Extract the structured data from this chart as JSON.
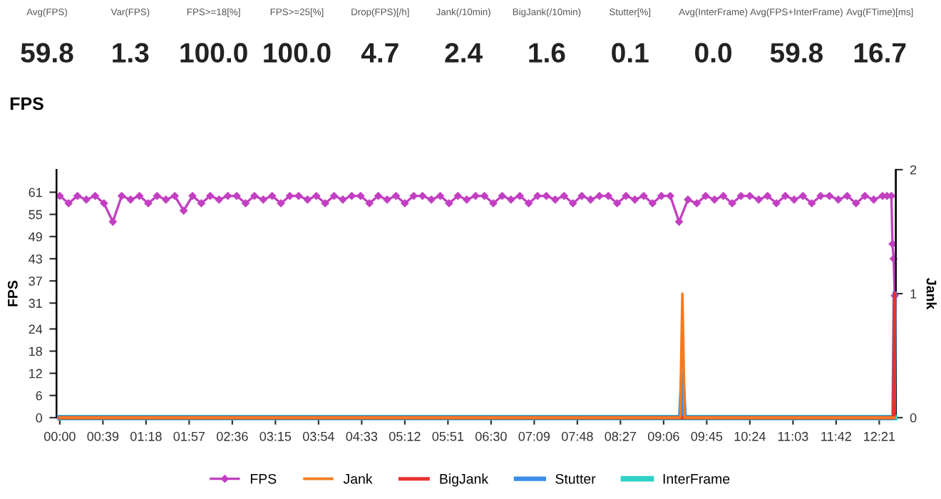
{
  "chart_data": [
    {
      "type": "other",
      "categories": [
        "Avg(FPS)",
        "Var(FPS)",
        "FPS>=18[%]",
        "FPS>=25[%]",
        "Drop(FPS)[/h]",
        "Jank(/10min)",
        "BigJank(/10min)",
        "Stutter[%]",
        "Avg(InterFrame)",
        "Avg(FPS+InterFrame)",
        "Avg(FTime)[ms]"
      ],
      "value_labels": [
        "59.8",
        "1.3",
        "100.0",
        "100.0",
        "4.7",
        "2.4",
        "1.6",
        "0.1",
        "0.0",
        "59.8",
        "16.7"
      ]
    },
    {
      "type": "line",
      "title": "FPS",
      "ylabel": "FPS",
      "y2label": "Jank",
      "xlim": [
        -3,
        756
      ],
      "xticks": [
        {
          "value": 0,
          "label": "00:00"
        },
        {
          "value": 39,
          "label": "00:39"
        },
        {
          "value": 78,
          "label": "01:18"
        },
        {
          "value": 117,
          "label": "01:57"
        },
        {
          "value": 156,
          "label": "02:36"
        },
        {
          "value": 195,
          "label": "03:15"
        },
        {
          "value": 234,
          "label": "03:54"
        },
        {
          "value": 273,
          "label": "04:33"
        },
        {
          "value": 312,
          "label": "05:12"
        },
        {
          "value": 351,
          "label": "05:51"
        },
        {
          "value": 390,
          "label": "06:30"
        },
        {
          "value": 429,
          "label": "07:09"
        },
        {
          "value": 468,
          "label": "07:48"
        },
        {
          "value": 507,
          "label": "08:27"
        },
        {
          "value": 546,
          "label": "09:06"
        },
        {
          "value": 585,
          "label": "09:45"
        },
        {
          "value": 624,
          "label": "10:24"
        },
        {
          "value": 663,
          "label": "11:03"
        },
        {
          "value": 702,
          "label": "11:42"
        },
        {
          "value": 741,
          "label": "12:21"
        }
      ],
      "ylim": [
        0,
        67.1
      ],
      "yticks": [
        0,
        6,
        12,
        18,
        24,
        31,
        37,
        43,
        49,
        55,
        61
      ],
      "y2lim": [
        0,
        2
      ],
      "y2ticks": [
        0,
        1,
        2
      ],
      "grid": false,
      "legend": "bottom",
      "series": [
        {
          "name": "FPS",
          "color": "#c23fc2",
          "marker": "diamond",
          "x": [
            0,
            8,
            16,
            24,
            32,
            40,
            48,
            56,
            64,
            72,
            80,
            88,
            96,
            104,
            112,
            120,
            128,
            136,
            144,
            152,
            160,
            168,
            176,
            184,
            192,
            200,
            208,
            216,
            224,
            232,
            240,
            248,
            256,
            264,
            272,
            280,
            288,
            296,
            304,
            312,
            320,
            328,
            336,
            344,
            352,
            360,
            368,
            376,
            384,
            392,
            400,
            408,
            416,
            424,
            432,
            440,
            448,
            456,
            464,
            472,
            480,
            488,
            496,
            504,
            512,
            520,
            528,
            536,
            544,
            552,
            560,
            568,
            576,
            584,
            592,
            600,
            608,
            616,
            624,
            632,
            640,
            648,
            656,
            664,
            672,
            680,
            688,
            696,
            704,
            712,
            720,
            728,
            736,
            744,
            748,
            752,
            753,
            754,
            755
          ],
          "values": [
            60,
            58,
            60,
            59,
            60,
            58,
            53,
            60,
            59,
            60,
            58,
            60,
            59,
            60,
            56,
            60,
            58,
            60,
            59,
            60,
            60,
            58,
            60,
            59,
            60,
            58,
            60,
            60,
            59,
            60,
            58,
            60,
            59,
            60,
            60,
            58,
            60,
            59,
            60,
            58,
            60,
            60,
            59,
            60,
            58,
            60,
            59,
            60,
            60,
            58,
            60,
            59,
            60,
            58,
            60,
            60,
            59,
            60,
            58,
            60,
            59,
            60,
            60,
            58,
            60,
            59,
            60,
            58,
            60,
            60,
            53,
            59,
            58,
            60,
            59,
            60,
            58,
            60,
            60,
            59,
            60,
            58,
            60,
            59,
            60,
            58,
            60,
            60,
            59,
            60,
            58,
            60,
            59,
            60,
            60,
            60,
            47,
            43,
            33
          ]
        },
        {
          "name": "Jank",
          "color": "#f47b20",
          "marker": "none",
          "axis": "y2",
          "x": [
            0,
            561,
            563,
            565,
            755
          ],
          "values": [
            0,
            0,
            1,
            0,
            0
          ]
        },
        {
          "name": "BigJank",
          "color": "#e8312f",
          "marker": "none",
          "axis": "y2",
          "x": [
            0,
            754,
            755
          ],
          "values": [
            0,
            0,
            1
          ]
        },
        {
          "name": "Stutter",
          "color": "#3a8ee6",
          "marker": "none",
          "axis": "y2",
          "x": [
            0,
            561,
            563,
            565,
            754,
            755
          ],
          "values": [
            0,
            0,
            0.35,
            0,
            0,
            1
          ]
        },
        {
          "name": "InterFrame",
          "color": "#2ed1c6",
          "marker": "none",
          "axis": "y2",
          "x": [
            0,
            755
          ],
          "values": [
            0,
            0
          ]
        }
      ]
    }
  ]
}
